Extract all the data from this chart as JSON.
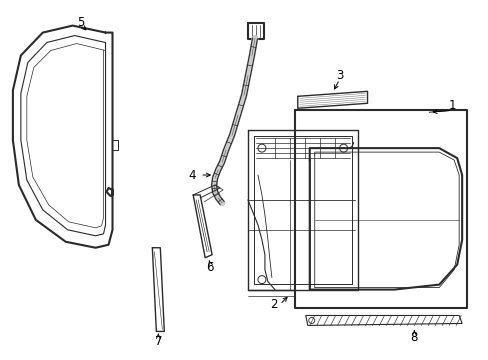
{
  "background": "#ffffff",
  "line_color": "#2a2a2a",
  "lw_main": 1.0,
  "lw_thick": 1.5,
  "lw_thin": 0.6,
  "label_fs": 8.5
}
